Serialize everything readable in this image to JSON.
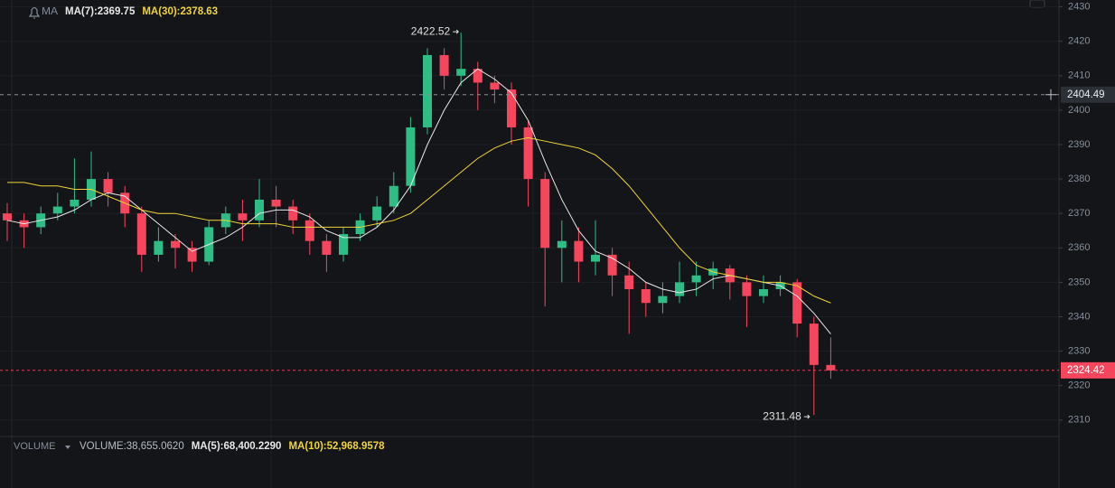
{
  "chart_data": {
    "type": "candlestick",
    "indicator": "MA",
    "up_color": "#2ebd85",
    "down_color": "#f6465d",
    "ylim": [
      2306,
      2432
    ],
    "yticks": [
      2310,
      2320,
      2330,
      2340,
      2350,
      2360,
      2370,
      2380,
      2390,
      2400,
      2410,
      2420,
      2430
    ],
    "grid": true,
    "open": [
      2370,
      2368,
      2366,
      2370,
      2372,
      2374,
      2380,
      2376,
      2370,
      2358,
      2362,
      2360,
      2356,
      2366,
      2370,
      2368,
      2374,
      2372,
      2368,
      2362,
      2358,
      2364,
      2368,
      2372,
      2378,
      2395,
      2416,
      2410,
      2412,
      2408,
      2406,
      2395,
      2380,
      2360,
      2362,
      2356,
      2358,
      2352,
      2348,
      2344,
      2346,
      2350,
      2352,
      2354,
      2350,
      2346,
      2348,
      2350,
      2338,
      2326
    ],
    "high": [
      2373,
      2370,
      2372,
      2376,
      2386,
      2388,
      2382,
      2378,
      2372,
      2366,
      2364,
      2362,
      2368,
      2372,
      2374,
      2380,
      2378,
      2374,
      2370,
      2364,
      2366,
      2370,
      2375,
      2382,
      2398,
      2418,
      2418,
      2422.52,
      2414,
      2410,
      2408,
      2397,
      2382,
      2368,
      2366,
      2368,
      2360,
      2356,
      2350,
      2350,
      2356,
      2356,
      2356,
      2355,
      2352,
      2352,
      2352,
      2351,
      2340,
      2334
    ],
    "low": [
      2362,
      2360,
      2364,
      2368,
      2370,
      2372,
      2372,
      2366,
      2353,
      2356,
      2354,
      2353,
      2355,
      2364,
      2362,
      2366,
      2366,
      2364,
      2358,
      2353,
      2356,
      2362,
      2366,
      2370,
      2376,
      2393,
      2406,
      2407,
      2400,
      2402,
      2390,
      2372,
      2343,
      2350,
      2350,
      2352,
      2346,
      2335,
      2340,
      2341,
      2344,
      2346,
      2348,
      2345,
      2337,
      2344,
      2346,
      2334,
      2311.48,
      2322
    ],
    "close": [
      2368,
      2366,
      2370,
      2372,
      2374,
      2380,
      2376,
      2370,
      2358,
      2362,
      2360,
      2356,
      2366,
      2370,
      2368,
      2374,
      2372,
      2368,
      2362,
      2358,
      2364,
      2368,
      2372,
      2378,
      2395,
      2416,
      2410,
      2412,
      2408,
      2406,
      2395,
      2380,
      2360,
      2362,
      2356,
      2358,
      2352,
      2348,
      2344,
      2346,
      2350,
      2352,
      2354,
      2350,
      2346,
      2348,
      2350,
      2338,
      2326,
      2324.42
    ],
    "series": [
      {
        "name": "MA(7):2369.75",
        "color": "#e8e8e8",
        "values": [
          2368,
          2367,
          2368,
          2369,
          2371,
          2374,
          2376,
          2375,
          2371,
          2367,
          2363,
          2359,
          2361,
          2363,
          2366,
          2370,
          2371,
          2371,
          2369,
          2365,
          2363,
          2363,
          2366,
          2371,
          2378,
          2390,
          2400,
          2408,
          2412,
          2409,
          2405,
          2397,
          2385,
          2374,
          2365,
          2359,
          2357,
          2354,
          2350,
          2348,
          2347,
          2348,
          2351,
          2352,
          2351,
          2350,
          2349,
          2346,
          2341,
          2335
        ]
      },
      {
        "name": "MA(30):2378.63",
        "color": "#f0d43a",
        "values": [
          2379,
          2379,
          2378,
          2378,
          2377,
          2377,
          2375,
          2373,
          2371,
          2370,
          2370,
          2369,
          2368,
          2368,
          2367,
          2367,
          2367,
          2366,
          2366,
          2366,
          2366,
          2366,
          2367,
          2368,
          2370,
          2374,
          2378,
          2382,
          2386,
          2389,
          2391,
          2392,
          2391,
          2390,
          2389,
          2387,
          2383,
          2378,
          2372,
          2366,
          2360,
          2355,
          2353,
          2352,
          2351,
          2350,
          2350,
          2349,
          2346,
          2344
        ]
      }
    ],
    "crosshair": 2404.49,
    "volume_panel": {
      "title": "VOLUME",
      "items": [
        {
          "text": "VOLUME:38,655.0620",
          "color": "#b7bdc6"
        },
        {
          "text": "MA(5):68,400.2290",
          "color": "#e8e8e8"
        },
        {
          "text": "MA(10):52,968.9578",
          "color": "#f0d43a"
        }
      ]
    }
  }
}
